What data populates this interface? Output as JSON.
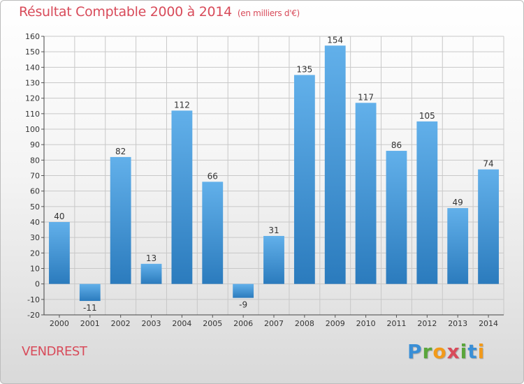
{
  "header": {
    "title": "Résultat Comptable 2000 à 2014",
    "unit": "(en milliers d'€)"
  },
  "footer": {
    "commune": "VENDREST",
    "logo_letters": [
      "P",
      "r",
      "o",
      "x",
      "i",
      "t",
      "i"
    ],
    "logo_colors": [
      "#3a8fd6",
      "#5aa63b",
      "#f29a1a",
      "#d84b5a",
      "#5aa63b",
      "#3a8fd6",
      "#f29a1a"
    ]
  },
  "colors": {
    "title": "#d84b5a",
    "bar_top": "#62b0ea",
    "bar_bottom": "#2b7bbd",
    "grid": "#c8c8c8"
  },
  "chart_data": {
    "type": "bar",
    "title": "Résultat Comptable 2000 à 2014",
    "categories": [
      "2000",
      "2001",
      "2002",
      "2003",
      "2004",
      "2005",
      "2006",
      "2007",
      "2008",
      "2009",
      "2010",
      "2011",
      "2012",
      "2013",
      "2014"
    ],
    "values": [
      40,
      -11,
      82,
      13,
      112,
      66,
      -9,
      31,
      135,
      154,
      117,
      86,
      105,
      49,
      74
    ],
    "ylim": [
      -20,
      160
    ],
    "ytick_step": 10,
    "grid": true
  }
}
